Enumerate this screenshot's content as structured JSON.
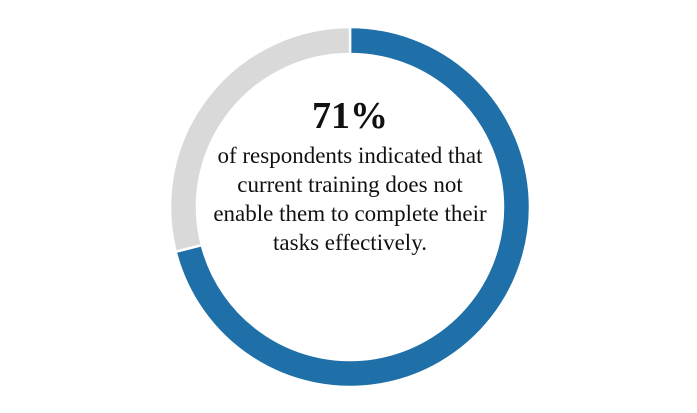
{
  "chart_data": {
    "type": "donut",
    "values": [
      71,
      29
    ],
    "value_labels": [
      "71%",
      null
    ],
    "colors": [
      "#1f6fa8",
      "#d9d9d9"
    ],
    "annotation": "of respondents indicated that current training does not enable them to complete their tasks effectively."
  }
}
